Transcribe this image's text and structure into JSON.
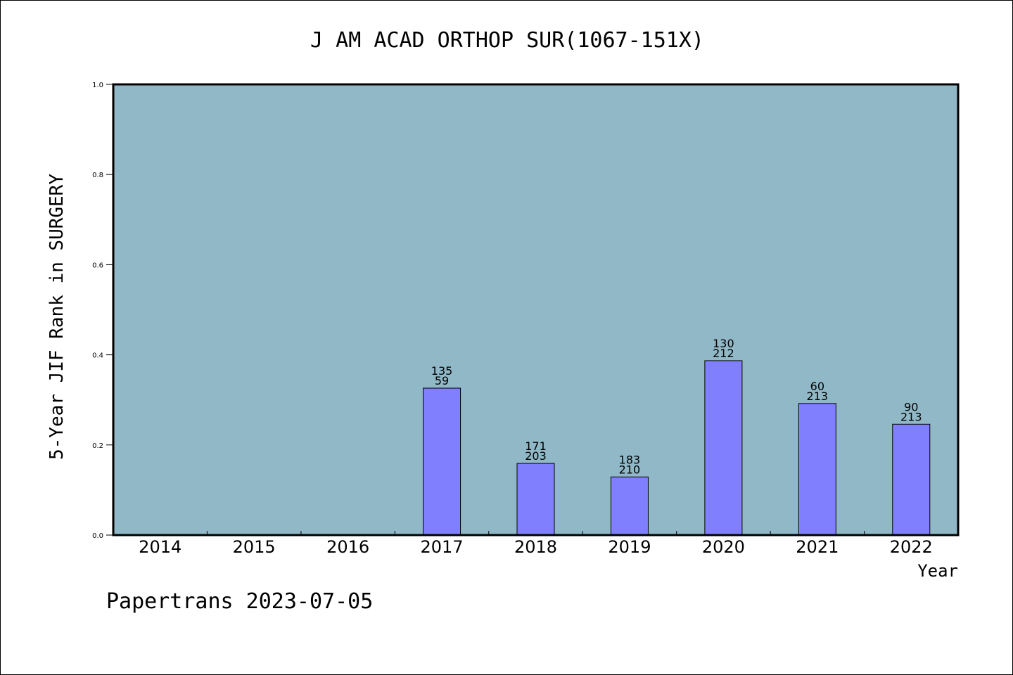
{
  "chart_data": {
    "type": "bar",
    "title": "J AM ACAD ORTHOP SUR(1067-151X)",
    "xlabel": "Year",
    "ylabel": "5-Year JIF Rank in SURGERY",
    "ylim": [
      0,
      1.0
    ],
    "yticks": [
      "0.0",
      "0.2",
      "0.4",
      "0.6",
      "0.8",
      "1.0"
    ],
    "categories": [
      "2014",
      "2015",
      "2016",
      "2017",
      "2018",
      "2019",
      "2020",
      "2021",
      "2022"
    ],
    "values": [
      null,
      null,
      null,
      0.326,
      0.159,
      0.129,
      0.387,
      0.292,
      0.246
    ],
    "bar_labels": [
      null,
      null,
      null,
      [
        "135",
        "59"
      ],
      [
        "171",
        "203"
      ],
      [
        "183",
        "210"
      ],
      [
        "130",
        "212"
      ],
      [
        "60",
        "213"
      ],
      [
        "90",
        "213"
      ]
    ],
    "grid": false,
    "colors": {
      "plot_bg": "#90b8c6",
      "bar": "#8080ff",
      "bar_edge": "#000000"
    }
  },
  "footer": "Papertrans 2023-07-05"
}
